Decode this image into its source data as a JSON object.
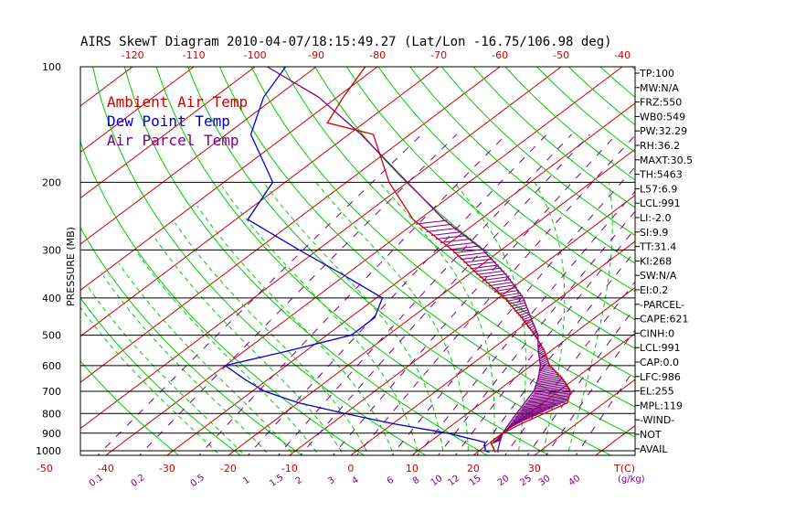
{
  "chart_data": {
    "type": "line",
    "title": "AIRS SkewT Diagram 2010-04-07/18:15:49.27 (Lat/Lon -16.75/106.98 deg)",
    "ylabel": "PRESSURE (MB)",
    "xlabel": "T(C)",
    "mixing_ratio_unit": "(g/kg)",
    "pressure_range": [
      1050,
      100
    ],
    "pressure_ticks": [
      "100",
      "200",
      "300",
      "400",
      "500",
      "600",
      "700",
      "800",
      "900",
      "1000"
    ],
    "top_temp_ticks": [
      "-120",
      "-110",
      "-100",
      "-90",
      "-80",
      "-70",
      "-60",
      "-50",
      "-40"
    ],
    "bottom_temp_ticks": [
      "-50",
      "-40",
      "-30",
      "-20",
      "-10",
      "0",
      "10",
      "20",
      "30"
    ],
    "mixing_ratio_labels": [
      "0.1",
      "0.2",
      "0.5",
      "1",
      "1.5",
      "2",
      "3",
      "4",
      "6",
      "8",
      "10",
      "12",
      "15",
      "20",
      "25",
      "30",
      "40"
    ],
    "legend": [
      {
        "label": "Ambient Air Temp",
        "color": "#cc0000"
      },
      {
        "label": "Dew Point Temp",
        "color": "#0000cc"
      },
      {
        "label": "Air Parcel Temp",
        "color": "#800080"
      }
    ],
    "series": [
      {
        "name": "Ambient Air Temp",
        "color": "#cc0000",
        "points": [
          [
            1010,
            23
          ],
          [
            1000,
            22.5
          ],
          [
            950,
            20
          ],
          [
            900,
            20
          ],
          [
            850,
            21
          ],
          [
            800,
            22.5
          ],
          [
            750,
            24
          ],
          [
            700,
            22
          ],
          [
            650,
            18
          ],
          [
            600,
            13
          ],
          [
            550,
            9
          ],
          [
            500,
            4
          ],
          [
            450,
            -2
          ],
          [
            400,
            -9
          ],
          [
            350,
            -18
          ],
          [
            300,
            -28
          ],
          [
            250,
            -41
          ],
          [
            200,
            -53
          ],
          [
            150,
            -66
          ],
          [
            140,
            -76
          ],
          [
            120,
            -79
          ],
          [
            100,
            -82
          ]
        ]
      },
      {
        "name": "Dew Point Temp",
        "color": "#0000cc",
        "points": [
          [
            1010,
            22
          ],
          [
            1000,
            21
          ],
          [
            950,
            19
          ],
          [
            900,
            11
          ],
          [
            850,
            0
          ],
          [
            800,
            -10
          ],
          [
            750,
            -20
          ],
          [
            700,
            -28
          ],
          [
            650,
            -34
          ],
          [
            600,
            -40
          ],
          [
            550,
            -33
          ],
          [
            500,
            -26
          ],
          [
            450,
            -26
          ],
          [
            400,
            -29
          ],
          [
            350,
            -40
          ],
          [
            300,
            -53
          ],
          [
            250,
            -68
          ],
          [
            200,
            -72
          ],
          [
            150,
            -86
          ],
          [
            120,
            -92
          ],
          [
            100,
            -95
          ]
        ]
      },
      {
        "name": "Air Parcel Temp",
        "color": "#800080",
        "points": [
          [
            1010,
            23.5
          ],
          [
            1000,
            23
          ],
          [
            950,
            21.5
          ],
          [
            900,
            20
          ],
          [
            850,
            19
          ],
          [
            800,
            18
          ],
          [
            750,
            17
          ],
          [
            700,
            16
          ],
          [
            650,
            14
          ],
          [
            600,
            11.5
          ],
          [
            550,
            8
          ],
          [
            500,
            4.5
          ],
          [
            450,
            -0.5
          ],
          [
            400,
            -6
          ],
          [
            350,
            -13.5
          ],
          [
            300,
            -23
          ],
          [
            250,
            -36
          ],
          [
            200,
            -50
          ],
          [
            150,
            -68
          ],
          [
            120,
            -83
          ],
          [
            100,
            -98
          ]
        ]
      }
    ],
    "indices": [
      "TP:100",
      "MW:N/A",
      "FRZ:550",
      "WB0:549",
      "PW:32.29",
      "RH:36.2",
      "MAXT:30.5",
      "TH:5463",
      "L57:6.9",
      "LCL:991",
      "LI:-2.0",
      "SI:9.9",
      "TT:31.4",
      "KI:268",
      "SW:N/A",
      "EI:0.2",
      "-PARCEL-",
      "CAPE:621",
      "CINH:0",
      "LCL:991",
      "CAP:0.0",
      "LFC:986",
      "EL:255",
      "MPL:119",
      "-WIND-",
      "NOT",
      "AVAIL"
    ],
    "colors": {
      "isotherm": "#cc0000",
      "dry_adiabat": "#00cc00",
      "moist_adiabat": "#00cc00",
      "mixing_ratio": "#800080",
      "isobar": "#000000"
    }
  }
}
